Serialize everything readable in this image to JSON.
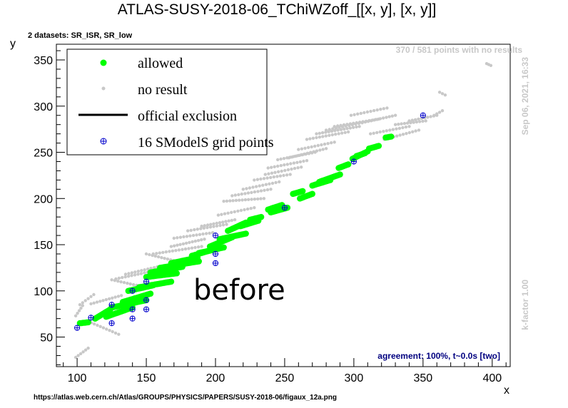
{
  "chart_data": {
    "type": "scatter",
    "title": "ATLAS-SUSY-2018-06_TChiWZoff_[[x, y], [x, y]]",
    "datasets_label": "2 datasets: SR_ISR, SR_low",
    "xlabel": "x",
    "ylabel": "y",
    "xlim": [
      85,
      413
    ],
    "ylim": [
      18,
      367
    ],
    "x_ticks": [
      100,
      150,
      200,
      250,
      300,
      350,
      400
    ],
    "y_ticks": [
      50,
      100,
      150,
      200,
      250,
      300,
      350
    ],
    "legend": {
      "placement": "top-left",
      "entries": [
        {
          "label": "allowed",
          "marker": "filled-circle",
          "color": "#00ff00"
        },
        {
          "label": "no result",
          "marker": "small-dot",
          "color": "#c8c8c8"
        },
        {
          "label": "official exclusion",
          "marker": "line",
          "color": "#000000"
        },
        {
          "label": "16 SModelS grid points",
          "marker": "open-cross",
          "color": "#0000cc"
        }
      ]
    },
    "no_results_note": "370 / 581 points with no results",
    "timestamp": "Sep 06, 2021, 16:33",
    "kfactor": "k-factor 1.00",
    "agreement": "agreement: 100%, t~0.0s [two]",
    "watermark": "before",
    "source_url": "https://atlas.web.cern.ch/Atlas/GROUPS/PHYSICS/PAPERS/SUSY-2018-06/figaux_12a.png",
    "series": [
      {
        "name": "allowed",
        "color": "#00ff00",
        "segments": [
          {
            "x": [
              102,
              108
            ],
            "y": [
              65,
              66
            ]
          },
          {
            "x": [
              113,
              124
            ],
            "y": [
              70,
              80
            ]
          },
          {
            "x": [
              121,
              140
            ],
            "y": [
              72,
              82
            ]
          },
          {
            "x": [
              125,
              150
            ],
            "y": [
              82,
              90
            ]
          },
          {
            "x": [
              133,
              153
            ],
            "y": [
              88,
              97
            ]
          },
          {
            "x": [
              137,
              155
            ],
            "y": [
              100,
              106
            ]
          },
          {
            "x": [
              145,
              168
            ],
            "y": [
              104,
              110
            ]
          },
          {
            "x": [
              150,
              172
            ],
            "y": [
              115,
              119
            ]
          },
          {
            "x": [
              153,
              176
            ],
            "y": [
              120,
              126
            ]
          },
          {
            "x": [
              160,
              188
            ],
            "y": [
              125,
              132
            ]
          },
          {
            "x": [
              168,
              187
            ],
            "y": [
              130,
              136
            ]
          },
          {
            "x": [
              183,
              199
            ],
            "y": [
              138,
              145
            ]
          },
          {
            "x": [
              188,
              206
            ],
            "y": [
              141,
              147
            ]
          },
          {
            "x": [
              196,
              212
            ],
            "y": [
              148,
              158
            ]
          },
          {
            "x": [
              203,
              222
            ],
            "y": [
              156,
              162
            ]
          },
          {
            "x": [
              209,
              222
            ],
            "y": [
              165,
              174
            ]
          },
          {
            "x": [
              218,
              231
            ],
            "y": [
              170,
              176
            ]
          },
          {
            "x": [
              225,
              233
            ],
            "y": [
              177,
              180
            ]
          },
          {
            "x": [
              238,
              248
            ],
            "y": [
              188,
              193
            ]
          },
          {
            "x": [
              240,
              252
            ],
            "y": [
              185,
              190
            ]
          },
          {
            "x": [
              256,
              263
            ],
            "y": [
              205,
              208
            ]
          },
          {
            "x": [
              261,
              270
            ],
            "y": [
              200,
              205
            ]
          },
          {
            "x": [
              270,
              283
            ],
            "y": [
              214,
              220
            ]
          },
          {
            "x": [
              275,
              290
            ],
            "y": [
              218,
              226
            ]
          },
          {
            "x": [
              289,
              296
            ],
            "y": [
              233,
              237
            ]
          },
          {
            "x": [
              299,
              310
            ],
            "y": [
              243,
              251
            ]
          },
          {
            "x": [
              302,
              308
            ],
            "y": [
              246,
              249
            ]
          },
          {
            "x": [
              311,
              318
            ],
            "y": [
              254,
              257
            ]
          },
          {
            "x": [
              323,
              327
            ],
            "y": [
              266,
              267
            ]
          }
        ]
      },
      {
        "name": "no result",
        "color": "#c8c8c8",
        "segments": [
          {
            "x": [
              99,
              108
            ],
            "y": [
              28,
              38
            ]
          },
          {
            "x": [
              99,
              104
            ],
            "y": [
              73,
              84
            ]
          },
          {
            "x": [
              102,
              112
            ],
            "y": [
              85,
              96
            ]
          },
          {
            "x": [
              108,
              130
            ],
            "y": [
              67,
              53
            ]
          },
          {
            "x": [
              110,
              132
            ],
            "y": [
              86,
              95
            ]
          },
          {
            "x": [
              125,
              143
            ],
            "y": [
              112,
              106
            ]
          },
          {
            "x": [
              128,
              160
            ],
            "y": [
              113,
              123
            ]
          },
          {
            "x": [
              135,
              158
            ],
            "y": [
              118,
              126
            ]
          },
          {
            "x": [
              150,
              172
            ],
            "y": [
              140,
              132
            ]
          },
          {
            "x": [
              155,
              190
            ],
            "y": [
              140,
              148
            ]
          },
          {
            "x": [
              168,
              192
            ],
            "y": [
              148,
              156
            ]
          },
          {
            "x": [
              170,
              198
            ],
            "y": [
              157,
              163
            ]
          },
          {
            "x": [
              180,
              208
            ],
            "y": [
              165,
              172
            ]
          },
          {
            "x": [
              190,
              214
            ],
            "y": [
              170,
              177
            ]
          },
          {
            "x": [
              202,
              228
            ],
            "y": [
              182,
              190
            ]
          },
          {
            "x": [
              206,
              235
            ],
            "y": [
              197,
              200
            ]
          },
          {
            "x": [
              212,
              240
            ],
            "y": [
              203,
              210
            ]
          },
          {
            "x": [
              220,
              246
            ],
            "y": [
              210,
              218
            ]
          },
          {
            "x": [
              228,
              254
            ],
            "y": [
              220,
              226
            ]
          },
          {
            "x": [
              236,
              262
            ],
            "y": [
              226,
              234
            ]
          },
          {
            "x": [
              238,
              266
            ],
            "y": [
              233,
              241
            ]
          },
          {
            "x": [
              245,
              272
            ],
            "y": [
              242,
              250
            ]
          },
          {
            "x": [
              253,
              280
            ],
            "y": [
              244,
              254
            ]
          },
          {
            "x": [
              260,
              286
            ],
            "y": [
              253,
              261
            ]
          },
          {
            "x": [
              266,
              296
            ],
            "y": [
              264,
              272
            ]
          },
          {
            "x": [
              273,
              304
            ],
            "y": [
              270,
              278
            ]
          },
          {
            "x": [
              280,
              306
            ],
            "y": [
              274,
              282
            ]
          },
          {
            "x": [
              286,
              318
            ],
            "y": [
              278,
              286
            ]
          },
          {
            "x": [
              298,
              324
            ],
            "y": [
              290,
              298
            ]
          },
          {
            "x": [
              306,
              330
            ],
            "y": [
              282,
              290
            ]
          },
          {
            "x": [
              312,
              340
            ],
            "y": [
              270,
              278
            ]
          },
          {
            "x": [
              322,
              347
            ],
            "y": [
              264,
              274
            ]
          },
          {
            "x": [
              330,
              352
            ],
            "y": [
              280,
              284
            ]
          },
          {
            "x": [
              340,
              360
            ],
            "y": [
              284,
              290
            ]
          },
          {
            "x": [
              358,
              364
            ],
            "y": [
              290,
              295
            ]
          },
          {
            "x": [
              362,
              366
            ],
            "y": [
              315,
              312
            ]
          },
          {
            "x": [
              396,
              399
            ],
            "y": [
              346,
              344
            ]
          }
        ]
      },
      {
        "name": "16 SModelS grid points",
        "color": "#0000cc",
        "points": [
          [
            100,
            60
          ],
          [
            110,
            71
          ],
          [
            125,
            65
          ],
          [
            125,
            85
          ],
          [
            140,
            70
          ],
          [
            140,
            80
          ],
          [
            140,
            100
          ],
          [
            150,
            80
          ],
          [
            150,
            90
          ],
          [
            150,
            110
          ],
          [
            200,
            130
          ],
          [
            200,
            140
          ],
          [
            200,
            160
          ],
          [
            250,
            190
          ],
          [
            300,
            240
          ],
          [
            350,
            290
          ]
        ]
      }
    ]
  }
}
